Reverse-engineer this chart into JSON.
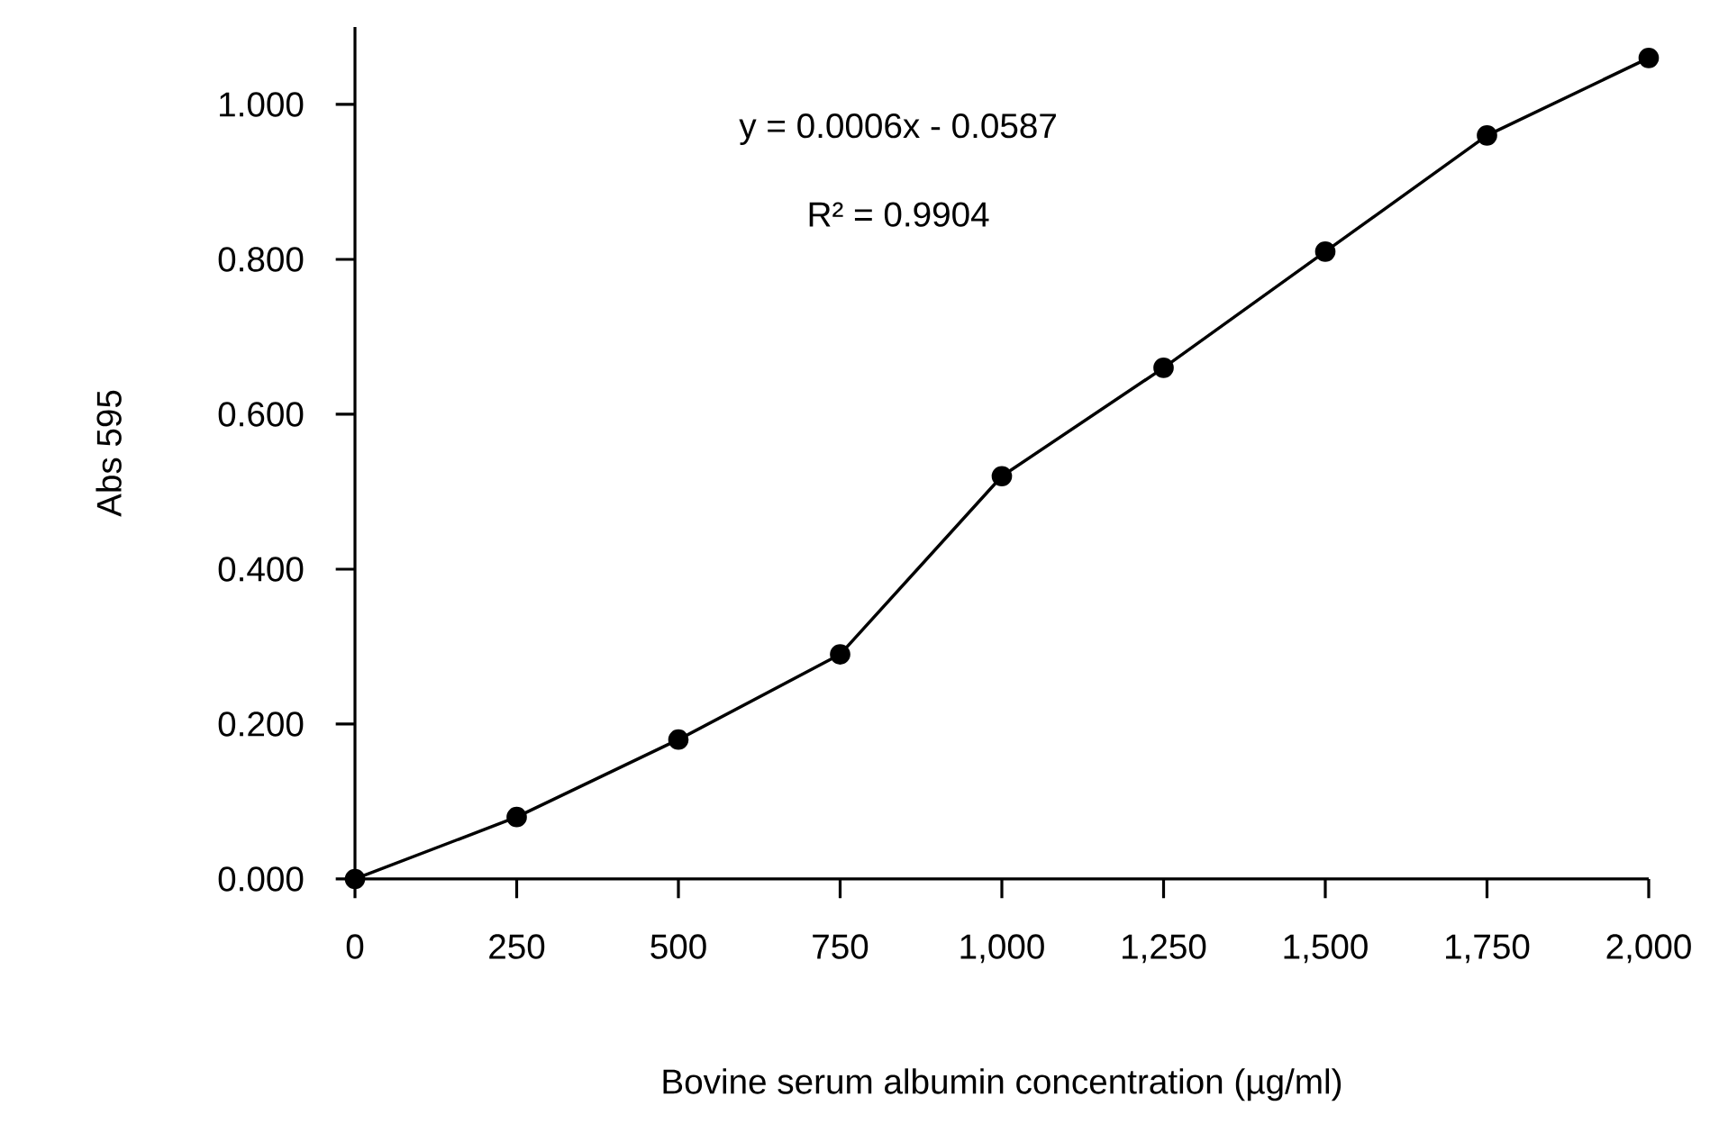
{
  "chart_data": {
    "type": "line",
    "xlabel": "Bovine serum albumin concentration (µg/ml)",
    "ylabel": "Abs 595",
    "x": [
      0,
      250,
      500,
      750,
      1000,
      1250,
      1500,
      1750,
      2000
    ],
    "series": [
      {
        "color": "#000000",
        "values": [
          0,
          0.08,
          0.18,
          0.29,
          0.52,
          0.66,
          0.81,
          0.96,
          1.06
        ]
      }
    ],
    "xlim": [
      0,
      2000
    ],
    "xticks": [
      0,
      250,
      500,
      750,
      {
        "value": 1000,
        "label": "1,000"
      },
      {
        "value": 1250,
        "label": "1,250"
      },
      {
        "value": 1500,
        "label": "1,500"
      },
      {
        "value": 1750,
        "label": "1,750"
      },
      {
        "value": 2000,
        "label": "2,000"
      }
    ],
    "ylim": [
      0,
      1.1
    ],
    "yticks": [
      {
        "value": 0,
        "label": "0.000"
      },
      {
        "value": 0.2,
        "label": "0.200"
      },
      {
        "value": 0.4,
        "label": "0.400"
      },
      {
        "value": 0.6,
        "label": "0.600"
      },
      {
        "value": 0.8,
        "label": "0.800"
      },
      {
        "value": 1.0,
        "label": "1.000"
      }
    ],
    "annotations": [
      "y = 0.0006x - 0.0587",
      "R² = 0.9904"
    ],
    "marker": "circle",
    "line_style": "solid"
  }
}
